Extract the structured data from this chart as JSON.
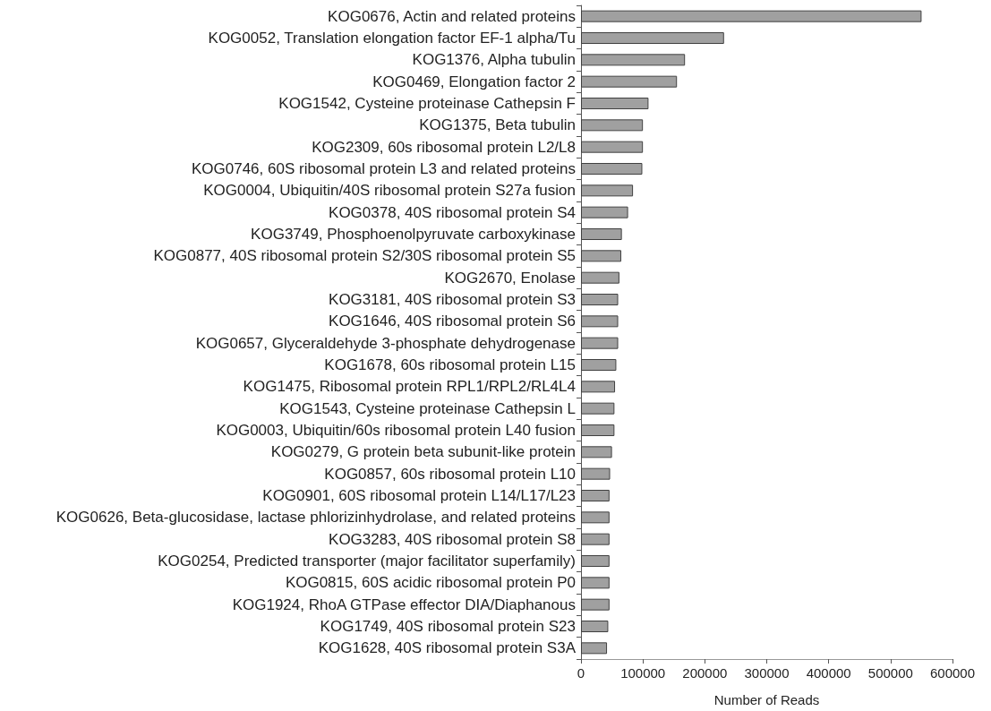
{
  "chart_data": {
    "type": "bar",
    "orientation": "horizontal",
    "xlabel": "Number of Reads",
    "categories": [
      "KOG0676, Actin and related proteins",
      "KOG0052, Translation elongation factor EF-1 alpha/Tu",
      "KOG1376, Alpha tubulin",
      "KOG0469, Elongation factor 2",
      "KOG1542, Cysteine proteinase Cathepsin F",
      "KOG1375, Beta tubulin",
      "KOG2309, 60s ribosomal protein L2/L8",
      "KOG0746, 60S ribosomal protein L3 and related proteins",
      "KOG0004, Ubiquitin/40S ribosomal protein S27a fusion",
      "KOG0378, 40S ribosomal protein S4",
      "KOG3749, Phosphoenolpyruvate carboxykinase",
      "KOG0877, 40S ribosomal protein S2/30S ribosomal protein S5",
      "KOG2670, Enolase",
      "KOG3181, 40S ribosomal protein S3",
      "KOG1646, 40S ribosomal protein S6",
      "KOG0657, Glyceraldehyde 3-phosphate dehydrogenase",
      "KOG1678, 60s ribosomal protein L15",
      "KOG1475, Ribosomal protein RPL1/RPL2/RL4L4",
      "KOG1543, Cysteine proteinase Cathepsin L",
      "KOG0003, Ubiquitin/60s ribosomal protein L40 fusion",
      "KOG0279, G protein beta subunit-like protein",
      "KOG0857, 60s ribosomal protein L10",
      "KOG0901, 60S ribosomal protein L14/L17/L23",
      "KOG0626, Beta-glucosidase, lactase phlorizinhydrolase, and related proteins",
      "KOG3283, 40S ribosomal protein S8",
      "KOG0254, Predicted transporter (major facilitator superfamily)",
      "KOG0815, 60S acidic ribosomal protein P0",
      "KOG1924, RhoA GTPase effector DIA/Diaphanous",
      "KOG1749, 40S ribosomal protein S23",
      "KOG1628, 40S ribosomal protein S3A"
    ],
    "values": [
      550000,
      231000,
      168000,
      155000,
      109000,
      100000,
      100000,
      99000,
      84000,
      76000,
      66000,
      65000,
      62000,
      60000,
      60000,
      60000,
      57000,
      55000,
      54000,
      54000,
      50000,
      47000,
      46000,
      46000,
      46000,
      46000,
      46000,
      46000,
      44000,
      42000
    ],
    "color": "#a0a0a0",
    "xlim": [
      0,
      600000
    ],
    "xticks": [
      0,
      100000,
      200000,
      300000,
      400000,
      500000,
      600000
    ],
    "grid": false
  }
}
